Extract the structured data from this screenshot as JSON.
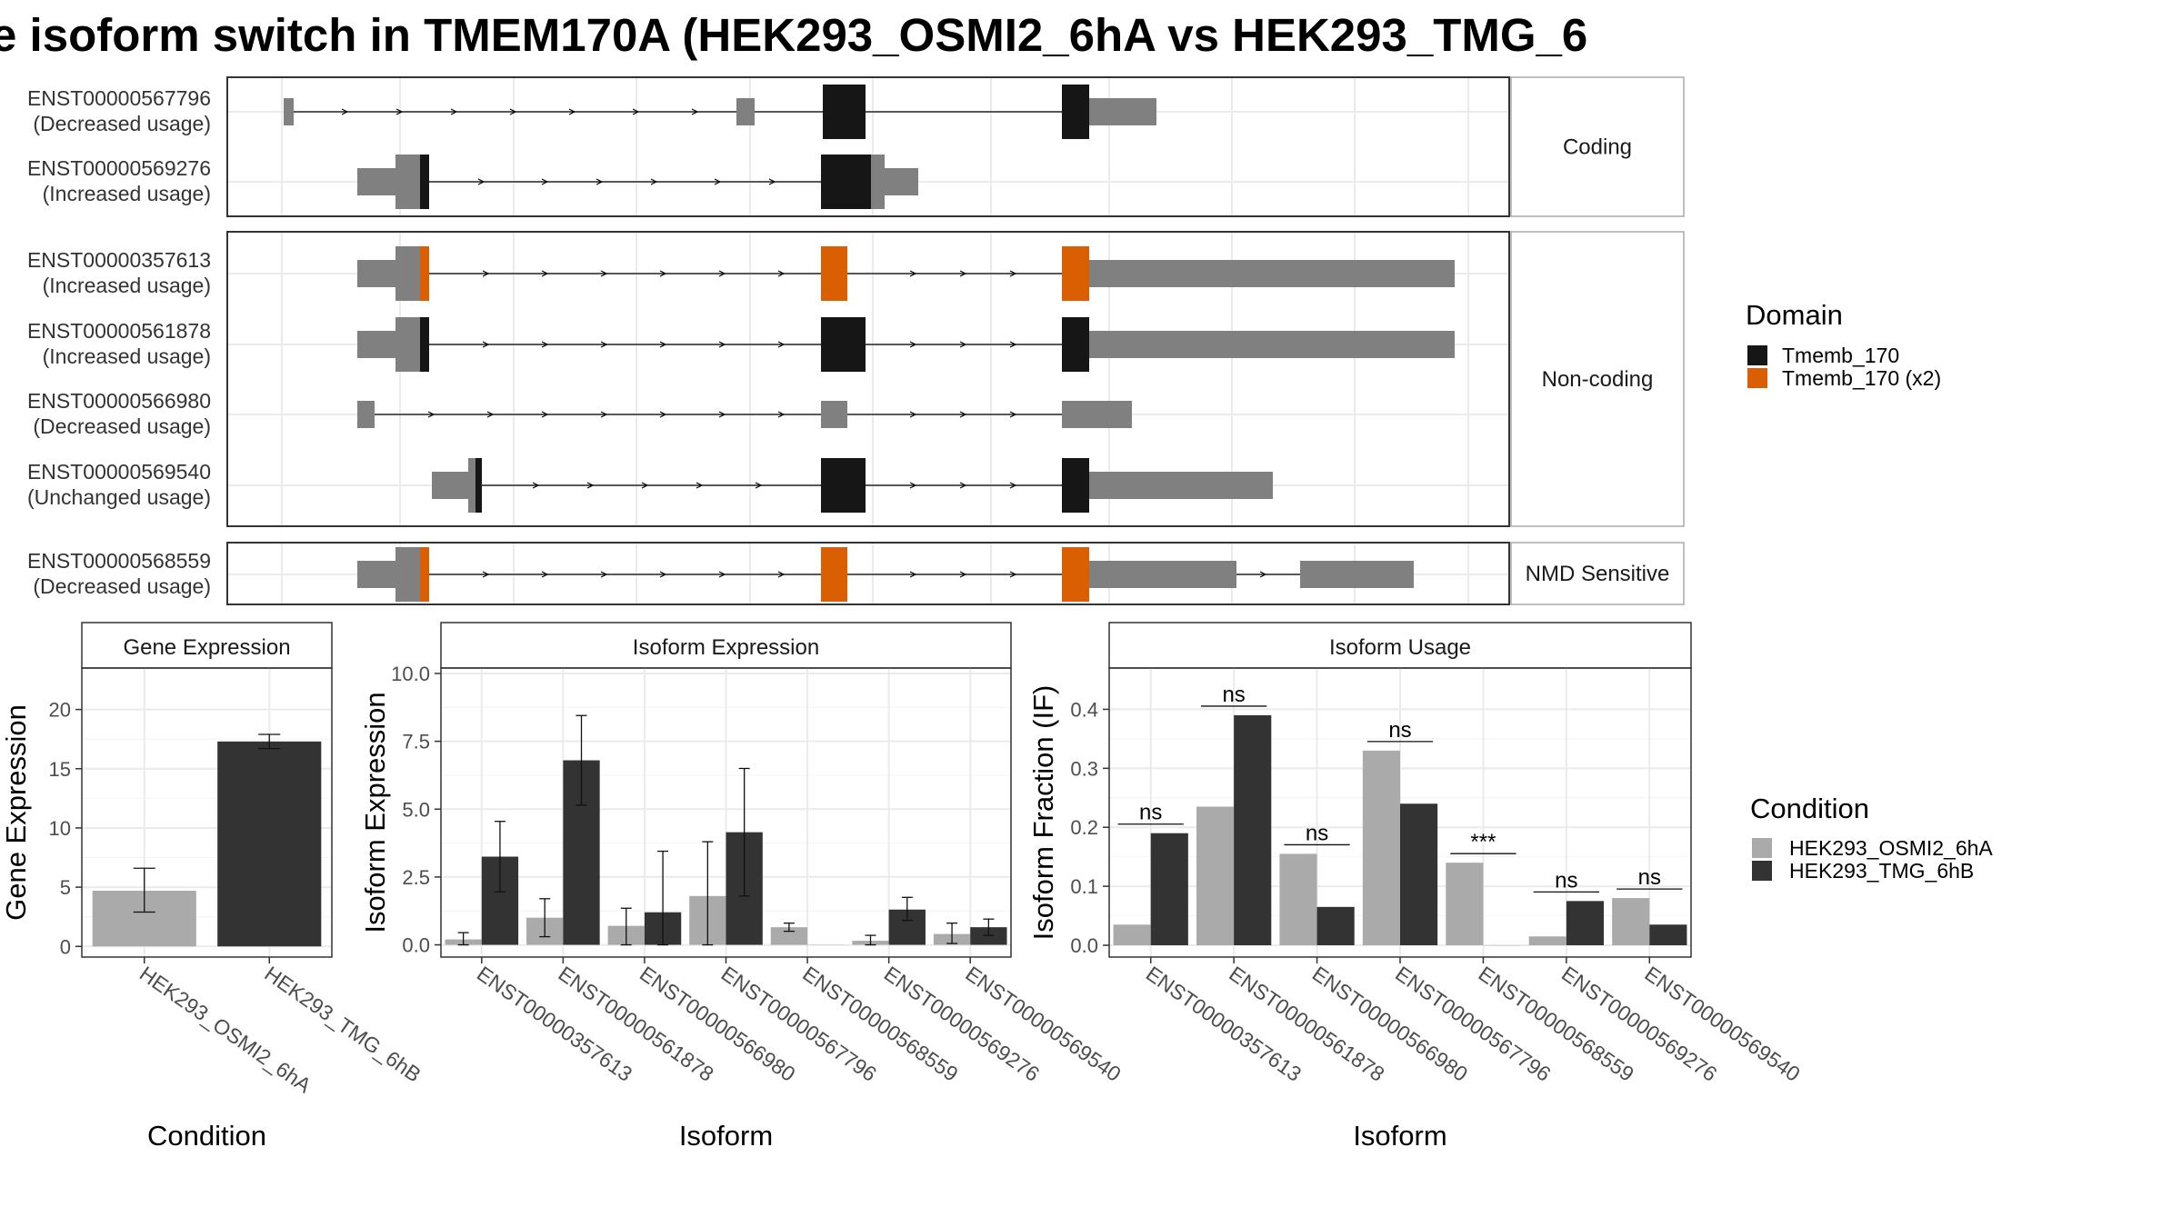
{
  "figure": {
    "title": "e isoform switch in TMEM170A (HEK293_OSMI2_6hA vs HEK293_TMG_6",
    "colors": {
      "cond_a": "#aaaaaa",
      "cond_b": "#333333",
      "exon_utr": "#808080",
      "domain_single": "#161616",
      "domain_x2": "#d95f02",
      "panel_border": "#333333",
      "strip_fill": "#ffffff",
      "grid": "#ebebeb"
    }
  },
  "structure": {
    "groups": [
      {
        "label": "Coding",
        "transcripts": [
          {
            "id": "ENST00000567796",
            "usage": "(Decreased usage)",
            "domain": "single"
          },
          {
            "id": "ENST00000569276",
            "usage": "(Increased usage)",
            "domain": "single"
          }
        ]
      },
      {
        "label": "Non-coding",
        "transcripts": [
          {
            "id": "ENST00000357613",
            "usage": "(Increased usage)",
            "domain": "x2"
          },
          {
            "id": "ENST00000561878",
            "usage": "(Increased usage)",
            "domain": "single"
          },
          {
            "id": "ENST00000566980",
            "usage": "(Decreased usage)",
            "domain": "none"
          },
          {
            "id": "ENST00000569540",
            "usage": "(Unchanged usage)",
            "domain": "single"
          }
        ]
      },
      {
        "label": "NMD Sensitive",
        "transcripts": [
          {
            "id": "ENST00000568559",
            "usage": "(Decreased usage)",
            "domain": "x2"
          }
        ]
      }
    ],
    "legend": {
      "title": "Domain",
      "items": [
        {
          "label": "Tmemb_170",
          "color": "#161616"
        },
        {
          "label": "Tmemb_170 (x2)",
          "color": "#d95f02"
        }
      ]
    }
  },
  "condition_legend": {
    "title": "Condition",
    "items": [
      {
        "label": "HEK293_OSMI2_6hA",
        "color": "#aaaaaa"
      },
      {
        "label": "HEK293_TMG_6hB",
        "color": "#333333"
      }
    ]
  },
  "chart_data": [
    {
      "type": "bar",
      "title": "Gene Expression",
      "xlabel": "Condition",
      "ylabel": "Gene Expression",
      "categories": [
        "HEK293_OSMI2_6hA",
        "HEK293_TMG_6hB"
      ],
      "values": [
        4.7,
        17.3
      ],
      "error_low": [
        2.9,
        16.7
      ],
      "error_high": [
        6.6,
        17.9
      ],
      "ylim": [
        -0.9,
        23.5
      ],
      "yticks": [
        0,
        5,
        10,
        15,
        20
      ],
      "ytick_labels": [
        "0",
        "5",
        "10",
        "15",
        "20"
      ]
    },
    {
      "type": "bar",
      "title": "Isoform Expression",
      "xlabel": "Isoform",
      "ylabel": "Isoform Expression",
      "categories": [
        "ENST00000357613",
        "ENST00000561878",
        "ENST00000566980",
        "ENST00000567796",
        "ENST00000568559",
        "ENST00000569276",
        "ENST00000569540"
      ],
      "series": [
        {
          "name": "HEK293_OSMI2_6hA",
          "values": [
            0.2,
            1.0,
            0.7,
            1.8,
            0.65,
            0.15,
            0.4
          ],
          "error_low": [
            0.0,
            0.3,
            0.0,
            0.0,
            0.5,
            0.0,
            0.05
          ],
          "error_high": [
            0.45,
            1.7,
            1.35,
            3.8,
            0.8,
            0.35,
            0.8
          ]
        },
        {
          "name": "HEK293_TMG_6hB",
          "values": [
            3.25,
            6.8,
            1.2,
            4.15,
            0.0,
            1.3,
            0.65
          ],
          "error_low": [
            1.95,
            5.15,
            0.0,
            1.8,
            0.0,
            0.9,
            0.35
          ],
          "error_high": [
            4.55,
            8.45,
            3.45,
            6.5,
            0.0,
            1.75,
            0.95
          ]
        }
      ],
      "ylim": [
        -0.45,
        10.2
      ],
      "yticks": [
        0,
        2.5,
        5,
        7.5,
        10
      ],
      "ytick_labels": [
        "0.0",
        "2.5",
        "5.0",
        "7.5",
        "10.0"
      ]
    },
    {
      "type": "bar",
      "title": "Isoform Usage",
      "xlabel": "Isoform",
      "ylabel": "Isoform Fraction (IF)",
      "categories": [
        "ENST00000357613",
        "ENST00000561878",
        "ENST00000566980",
        "ENST00000567796",
        "ENST00000568559",
        "ENST00000569276",
        "ENST00000569540"
      ],
      "series": [
        {
          "name": "HEK293_OSMI2_6hA",
          "values": [
            0.035,
            0.235,
            0.155,
            0.33,
            0.14,
            0.015,
            0.08
          ]
        },
        {
          "name": "HEK293_TMG_6hB",
          "values": [
            0.19,
            0.39,
            0.065,
            0.24,
            0.0,
            0.075,
            0.035
          ]
        }
      ],
      "significance": [
        "ns",
        "ns",
        "ns",
        "ns",
        "***",
        "ns",
        "ns"
      ],
      "ylim": [
        -0.02,
        0.47
      ],
      "yticks": [
        0,
        0.1,
        0.2,
        0.3,
        0.4
      ],
      "ytick_labels": [
        "0.0",
        "0.1",
        "0.2",
        "0.3",
        "0.4"
      ]
    }
  ]
}
